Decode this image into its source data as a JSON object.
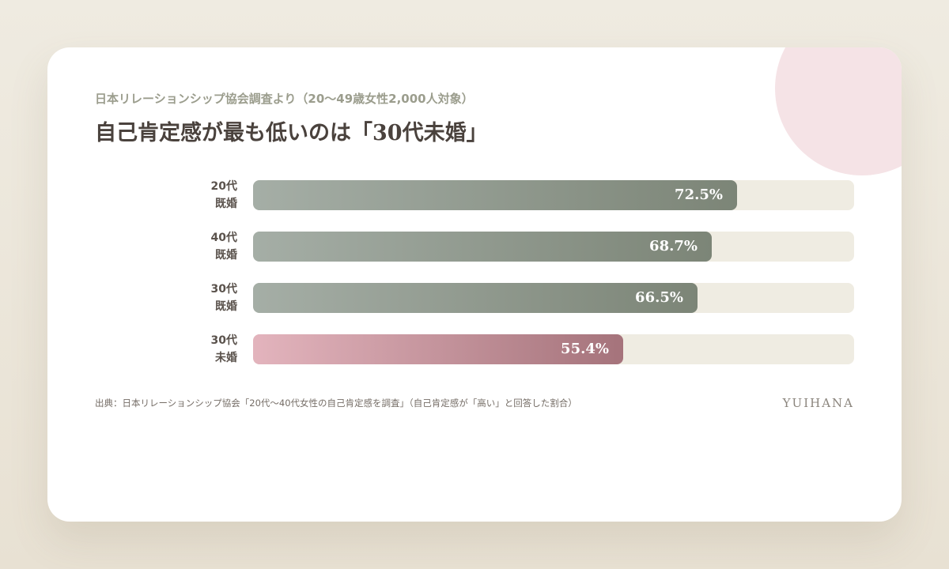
{
  "header": {
    "subtitle": "日本リレーションシップ協会調査より（20〜49歳女性2,000人対象）",
    "title": "自己肯定感が最も低いのは「30代未婚」"
  },
  "chart_data": {
    "type": "bar",
    "orientation": "horizontal",
    "unit": "%",
    "categories": [
      {
        "line1": "20代",
        "line2": "既婚"
      },
      {
        "line1": "40代",
        "line2": "既婚"
      },
      {
        "line1": "30代",
        "line2": "既婚"
      },
      {
        "line1": "30代",
        "line2": "未婚"
      }
    ],
    "values": [
      72.5,
      68.7,
      66.5,
      55.4
    ],
    "value_labels": [
      "72.5%",
      "68.7%",
      "66.5%",
      "55.4%"
    ],
    "highlight_index": 3,
    "xlim": [
      0,
      90
    ],
    "colors": {
      "default_bar": "#8f988c",
      "highlight_bar": "#c4939b",
      "track": "#efece2"
    }
  },
  "footer": {
    "source": "出典：日本リレーションシップ協会「20代〜40代女性の自己肯定感を調査」（自己肯定感が「高い」と回答した割合）",
    "brand": "YUIHANA"
  }
}
